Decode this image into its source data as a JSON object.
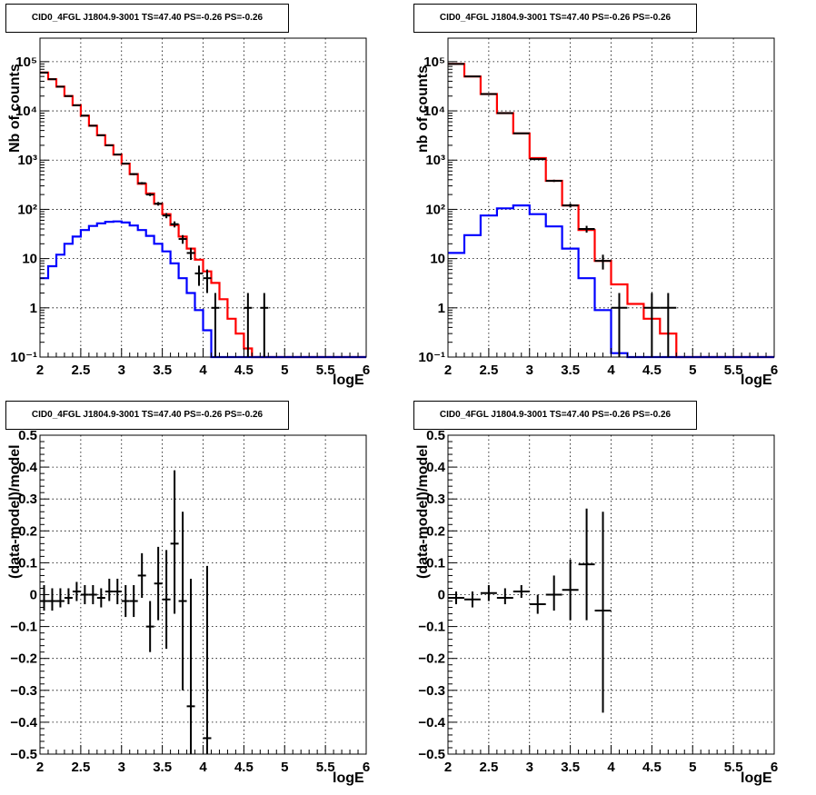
{
  "chart_data": [
    {
      "type": "line",
      "panel": "top-left",
      "title": "CID0_4FGL J1804.9-3001 TS=47.40 PS=-0.26 PS=-0.26",
      "xlabel": "logE",
      "ylabel": "Nb of counts",
      "xlim": [
        2,
        6
      ],
      "ylim": [
        0.1,
        300000
      ],
      "log_y": true,
      "grid": true,
      "x_ticks": [
        "2",
        "2.5",
        "3",
        "3.5",
        "4",
        "4.5",
        "5",
        "5.5",
        "6"
      ],
      "y_ticks": [
        {
          "v": 0.1,
          "label": "10⁻¹"
        },
        {
          "v": 1,
          "label": "1"
        },
        {
          "v": 10,
          "label": "10"
        },
        {
          "v": 100,
          "label": "10²"
        },
        {
          "v": 1000,
          "label": "10³"
        },
        {
          "v": 10000,
          "label": "10⁴"
        },
        {
          "v": 100000,
          "label": "10⁵"
        }
      ],
      "bin_edges": [
        2.0,
        2.1,
        2.2,
        2.3,
        2.4,
        2.5,
        2.6,
        2.7,
        2.8,
        2.9,
        3.0,
        3.1,
        3.2,
        3.3,
        3.4,
        3.5,
        3.6,
        3.7,
        3.8,
        3.9,
        4.0,
        4.1,
        4.2,
        4.3,
        4.4,
        4.5,
        4.6,
        4.7,
        4.8,
        4.9,
        5.0,
        5.1,
        5.2,
        5.3,
        5.4,
        5.5,
        5.6,
        5.7,
        5.8,
        5.9,
        6.0
      ],
      "series": [
        {
          "color": "#ff0000",
          "kind": "step",
          "values": [
            60000,
            44000,
            31000,
            20000,
            13000,
            8000,
            5000,
            3200,
            2000,
            1300,
            850,
            520,
            330,
            210,
            130,
            80,
            48,
            28,
            16,
            9.5,
            5.5,
            3.2,
            1.5,
            0.6,
            0.3,
            0.15,
            0.1,
            0.1,
            0.1,
            0.1,
            0.1,
            0.1,
            0.1,
            0.1,
            0.1,
            0.1,
            0.1,
            0.1,
            0.1,
            0.1
          ]
        },
        {
          "color": "#0000ff",
          "kind": "step",
          "values": [
            4,
            7,
            12,
            20,
            28,
            38,
            46,
            52,
            56,
            57,
            54,
            47,
            38,
            29,
            20,
            14,
            8,
            4,
            2,
            0.9,
            0.35,
            0.1,
            0.1,
            0.1,
            0.1,
            0.1,
            0.1,
            0.1,
            0.1,
            0.1,
            0.1,
            0.1,
            0.1,
            0.1,
            0.1,
            0.1,
            0.1,
            0.1,
            0.1,
            0.1
          ]
        }
      ],
      "points": [
        {
          "x": 2.05,
          "y": 60000,
          "lo": 59500,
          "hi": 60500
        },
        {
          "x": 2.15,
          "y": 44000,
          "lo": 43600,
          "hi": 44400
        },
        {
          "x": 2.25,
          "y": 31000,
          "lo": 30700,
          "hi": 31300
        },
        {
          "x": 2.35,
          "y": 20000,
          "lo": 19800,
          "hi": 20200
        },
        {
          "x": 2.45,
          "y": 13000,
          "lo": 12880,
          "hi": 13120
        },
        {
          "x": 2.55,
          "y": 8000,
          "lo": 7910,
          "hi": 8090
        },
        {
          "x": 2.65,
          "y": 5000,
          "lo": 4930,
          "hi": 5070
        },
        {
          "x": 2.75,
          "y": 3200,
          "lo": 3140,
          "hi": 3260
        },
        {
          "x": 2.85,
          "y": 2000,
          "lo": 1955,
          "hi": 2045
        },
        {
          "x": 2.95,
          "y": 1300,
          "lo": 1265,
          "hi": 1335
        },
        {
          "x": 3.05,
          "y": 850,
          "lo": 820,
          "hi": 880
        },
        {
          "x": 3.15,
          "y": 520,
          "lo": 497,
          "hi": 543
        },
        {
          "x": 3.25,
          "y": 340,
          "lo": 322,
          "hi": 358
        },
        {
          "x": 3.35,
          "y": 200,
          "lo": 186,
          "hi": 214
        },
        {
          "x": 3.45,
          "y": 130,
          "lo": 119,
          "hi": 141
        },
        {
          "x": 3.55,
          "y": 75,
          "lo": 66,
          "hi": 84
        },
        {
          "x": 3.65,
          "y": 50,
          "lo": 43,
          "hi": 57
        },
        {
          "x": 3.75,
          "y": 25,
          "lo": 20,
          "hi": 30
        },
        {
          "x": 3.85,
          "y": 13,
          "lo": 9.4,
          "hi": 16.6
        },
        {
          "x": 3.95,
          "y": 5,
          "lo": 2.8,
          "hi": 7.2
        },
        {
          "x": 4.05,
          "y": 4,
          "lo": 2,
          "hi": 6
        },
        {
          "x": 4.15,
          "y": 1,
          "lo": 0.1,
          "hi": 2
        },
        {
          "x": 4.55,
          "y": 1,
          "lo": 0.1,
          "hi": 2
        },
        {
          "x": 4.75,
          "y": 1,
          "lo": 0.1,
          "hi": 2
        }
      ],
      "point_half_width": 0.05
    },
    {
      "type": "line",
      "panel": "top-right",
      "title": "CID0_4FGL J1804.9-3001 TS=47.40 PS=-0.26 PS=-0.26",
      "xlabel": "logE",
      "ylabel": "nb of counts",
      "xlim": [
        2,
        6
      ],
      "ylim": [
        0.1,
        300000
      ],
      "log_y": true,
      "grid": true,
      "x_ticks": [
        "2",
        "2.5",
        "3",
        "3.5",
        "4",
        "4.5",
        "5",
        "5.5",
        "6"
      ],
      "y_ticks": [
        {
          "v": 0.1,
          "label": "10⁻¹"
        },
        {
          "v": 1,
          "label": "1"
        },
        {
          "v": 10,
          "label": "10"
        },
        {
          "v": 100,
          "label": "10²"
        },
        {
          "v": 1000,
          "label": "10³"
        },
        {
          "v": 10000,
          "label": "10⁴"
        },
        {
          "v": 100000,
          "label": "10⁵"
        }
      ],
      "bin_edges": [
        2.0,
        2.2,
        2.4,
        2.6,
        2.8,
        3.0,
        3.2,
        3.4,
        3.6,
        3.8,
        4.0,
        4.2,
        4.4,
        4.6,
        4.8,
        5.0,
        5.2,
        5.4,
        5.6,
        5.8,
        6.0
      ],
      "series": [
        {
          "color": "#ff0000",
          "kind": "step",
          "values": [
            90000,
            50000,
            22000,
            9000,
            3500,
            1100,
            380,
            120,
            38,
            9,
            3,
            1.2,
            0.6,
            0.3,
            0.1,
            0.1,
            0.1,
            0.1,
            0.1,
            0.1
          ]
        },
        {
          "color": "#0000ff",
          "kind": "step",
          "values": [
            13,
            30,
            75,
            105,
            120,
            80,
            45,
            16,
            4,
            0.9,
            0.12,
            0.1,
            0.1,
            0.1,
            0.1,
            0.1,
            0.1,
            0.1,
            0.1,
            0.1
          ]
        }
      ],
      "points": [
        {
          "x": 2.1,
          "y": 90000,
          "lo": 89400,
          "hi": 90600
        },
        {
          "x": 2.3,
          "y": 50000,
          "lo": 49550,
          "hi": 50450
        },
        {
          "x": 2.5,
          "y": 22000,
          "lo": 21700,
          "hi": 22300
        },
        {
          "x": 2.7,
          "y": 9000,
          "lo": 8905,
          "hi": 9095
        },
        {
          "x": 2.9,
          "y": 3500,
          "lo": 3440,
          "hi": 3560
        },
        {
          "x": 3.1,
          "y": 1050,
          "lo": 1018,
          "hi": 1082
        },
        {
          "x": 3.3,
          "y": 380,
          "lo": 360,
          "hi": 400
        },
        {
          "x": 3.5,
          "y": 120,
          "lo": 109,
          "hi": 131
        },
        {
          "x": 3.7,
          "y": 40,
          "lo": 33.7,
          "hi": 46.3
        },
        {
          "x": 3.9,
          "y": 9,
          "lo": 6,
          "hi": 12
        },
        {
          "x": 4.1,
          "y": 1,
          "lo": 0.1,
          "hi": 2
        },
        {
          "x": 4.5,
          "y": 1,
          "lo": 0.1,
          "hi": 2
        },
        {
          "x": 4.7,
          "y": 1,
          "lo": 0.1,
          "hi": 2
        }
      ],
      "point_half_width": 0.1
    },
    {
      "type": "scatter",
      "panel": "bottom-left",
      "title": "CID0_4FGL J1804.9-3001 TS=47.40 PS=-0.26 PS=-0.26",
      "xlabel": "logE",
      "ylabel": "(data-model)/model",
      "xlim": [
        2,
        6
      ],
      "ylim": [
        -0.5,
        0.5
      ],
      "log_y": false,
      "grid": true,
      "x_ticks": [
        "2",
        "2.5",
        "3",
        "3.5",
        "4",
        "4.5",
        "5",
        "5.5",
        "6"
      ],
      "y_ticks": [
        {
          "v": -0.5,
          "label": "−0.5"
        },
        {
          "v": -0.4,
          "label": "−0.4"
        },
        {
          "v": -0.3,
          "label": "−0.3"
        },
        {
          "v": -0.2,
          "label": "−0.2"
        },
        {
          "v": -0.1,
          "label": "−0.1"
        },
        {
          "v": 0,
          "label": "0"
        },
        {
          "v": 0.1,
          "label": "0.1"
        },
        {
          "v": 0.2,
          "label": "0.2"
        },
        {
          "v": 0.3,
          "label": "0.3"
        },
        {
          "v": 0.4,
          "label": "0.4"
        },
        {
          "v": 0.5,
          "label": "0.5"
        }
      ],
      "points": [
        {
          "x": 2.05,
          "y": -0.02,
          "lo": -0.05,
          "hi": 0.03
        },
        {
          "x": 2.15,
          "y": -0.02,
          "lo": -0.05,
          "hi": 0.02
        },
        {
          "x": 2.25,
          "y": -0.02,
          "lo": -0.04,
          "hi": 0.02
        },
        {
          "x": 2.35,
          "y": -0.01,
          "lo": -0.03,
          "hi": 0.02
        },
        {
          "x": 2.45,
          "y": 0.01,
          "lo": -0.02,
          "hi": 0.04
        },
        {
          "x": 2.55,
          "y": 0.0,
          "lo": -0.03,
          "hi": 0.03
        },
        {
          "x": 2.65,
          "y": 0.0,
          "lo": -0.03,
          "hi": 0.03
        },
        {
          "x": 2.75,
          "y": -0.01,
          "lo": -0.04,
          "hi": 0.02
        },
        {
          "x": 2.85,
          "y": 0.01,
          "lo": -0.02,
          "hi": 0.05
        },
        {
          "x": 2.95,
          "y": 0.01,
          "lo": -0.03,
          "hi": 0.05
        },
        {
          "x": 3.05,
          "y": -0.02,
          "lo": -0.07,
          "hi": 0.03
        },
        {
          "x": 3.15,
          "y": -0.02,
          "lo": -0.07,
          "hi": 0.03
        },
        {
          "x": 3.25,
          "y": 0.06,
          "lo": -0.01,
          "hi": 0.13
        },
        {
          "x": 3.35,
          "y": -0.1,
          "lo": -0.18,
          "hi": -0.02
        },
        {
          "x": 3.45,
          "y": 0.035,
          "lo": -0.08,
          "hi": 0.15
        },
        {
          "x": 3.55,
          "y": -0.015,
          "lo": -0.17,
          "hi": 0.14
        },
        {
          "x": 3.65,
          "y": 0.16,
          "lo": -0.06,
          "hi": 0.39
        },
        {
          "x": 3.75,
          "y": -0.02,
          "lo": -0.3,
          "hi": 0.26
        },
        {
          "x": 3.85,
          "y": -0.35,
          "lo": -0.5,
          "hi": 0.05
        },
        {
          "x": 4.05,
          "y": -0.45,
          "lo": -0.5,
          "hi": 0.09
        }
      ],
      "point_half_width": 0.05
    },
    {
      "type": "scatter",
      "panel": "bottom-right",
      "title": "CID0_4FGL J1804.9-3001 TS=47.40 PS=-0.26 PS=-0.26",
      "xlabel": "logE",
      "ylabel": "(data-model)/model",
      "xlim": [
        2,
        6
      ],
      "ylim": [
        -0.5,
        0.5
      ],
      "log_y": false,
      "grid": true,
      "x_ticks": [
        "2",
        "2.5",
        "3",
        "3.5",
        "4",
        "4.5",
        "5",
        "5.5",
        "6"
      ],
      "y_ticks": [
        {
          "v": -0.5,
          "label": "−0.5"
        },
        {
          "v": -0.4,
          "label": "−0.4"
        },
        {
          "v": -0.3,
          "label": "−0.3"
        },
        {
          "v": -0.2,
          "label": "−0.2"
        },
        {
          "v": -0.1,
          "label": "−0.1"
        },
        {
          "v": 0,
          "label": "0"
        },
        {
          "v": 0.1,
          "label": "0.1"
        },
        {
          "v": 0.2,
          "label": "0.2"
        },
        {
          "v": 0.3,
          "label": "0.3"
        },
        {
          "v": 0.4,
          "label": "0.4"
        },
        {
          "v": 0.5,
          "label": "0.5"
        }
      ],
      "points": [
        {
          "x": 2.1,
          "y": -0.01,
          "lo": -0.03,
          "hi": 0.01
        },
        {
          "x": 2.3,
          "y": -0.015,
          "lo": -0.04,
          "hi": 0.01
        },
        {
          "x": 2.5,
          "y": 0.005,
          "lo": -0.02,
          "hi": 0.03
        },
        {
          "x": 2.7,
          "y": -0.01,
          "lo": -0.03,
          "hi": 0.02
        },
        {
          "x": 2.9,
          "y": 0.01,
          "lo": -0.01,
          "hi": 0.03
        },
        {
          "x": 3.1,
          "y": -0.03,
          "lo": -0.06,
          "hi": 0.0
        },
        {
          "x": 3.3,
          "y": 0.0,
          "lo": -0.05,
          "hi": 0.06
        },
        {
          "x": 3.5,
          "y": 0.015,
          "lo": -0.08,
          "hi": 0.11
        },
        {
          "x": 3.7,
          "y": 0.095,
          "lo": -0.08,
          "hi": 0.27
        },
        {
          "x": 3.9,
          "y": -0.05,
          "lo": -0.37,
          "hi": 0.26
        }
      ],
      "point_half_width": 0.1
    }
  ]
}
